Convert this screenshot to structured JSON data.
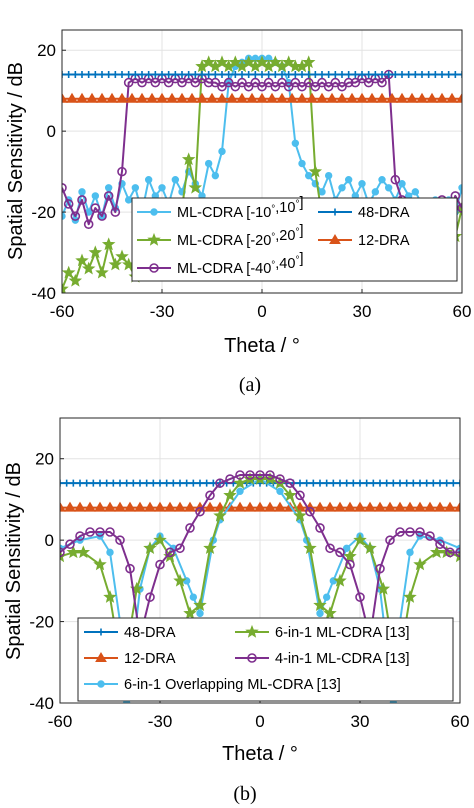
{
  "chart_data": [
    {
      "type": "line",
      "caption": "(a)",
      "xlabel": "Theta / °",
      "ylabel": "Spatial Sensitivity / dB",
      "xlim": [
        -60,
        60
      ],
      "ylim": [
        -40,
        25
      ],
      "xticks": [
        -60,
        -30,
        0,
        30,
        60
      ],
      "yticks": [
        -40,
        -20,
        0,
        20
      ],
      "grid": true,
      "legend": {
        "position": "lower-center",
        "columns": 2
      },
      "series": [
        {
          "name": "ML-CDRA [-10°,10°]",
          "color": "#4DBEEE",
          "marker": "circle-filled",
          "x": [
            -60,
            -58,
            -56,
            -54,
            -52,
            -50,
            -48,
            -46,
            -44,
            -42,
            -40,
            -38,
            -36,
            -34,
            -32,
            -30,
            -28,
            -26,
            -24,
            -22,
            -20,
            -18,
            -16,
            -14,
            -12,
            -10,
            -8,
            -6,
            -4,
            -2,
            0,
            2,
            4,
            6,
            8,
            10,
            12,
            14,
            16,
            18,
            20,
            22,
            24,
            26,
            28,
            30,
            32,
            34,
            36,
            38,
            40,
            42,
            44,
            46,
            48,
            50,
            52,
            54,
            56,
            58,
            60
          ],
          "y": [
            -21,
            -17,
            -22,
            -15,
            -20,
            -16,
            -21,
            -14,
            -19,
            -13,
            -17,
            -14,
            -20,
            -12,
            -16,
            -14,
            -18,
            -12,
            -15,
            -10,
            -13,
            -16,
            -8,
            -11,
            -5,
            12,
            16,
            17,
            18,
            18,
            18,
            18,
            17,
            16,
            12,
            -3,
            -8,
            -11,
            -13,
            -15,
            -11,
            -17,
            -14,
            -12,
            -16,
            -13,
            -18,
            -15,
            -12,
            -14,
            -17,
            -13,
            -16,
            -15,
            -18,
            -19,
            -17,
            -21,
            -17,
            -20,
            -14
          ]
        },
        {
          "name": "ML-CDRA [-20°,20°]",
          "color": "#77AC30",
          "marker": "star",
          "x": [
            -60,
            -58,
            -56,
            -54,
            -52,
            -50,
            -48,
            -46,
            -44,
            -42,
            -40,
            -38,
            -36,
            -34,
            -32,
            -30,
            -28,
            -26,
            -24,
            -22,
            -20,
            -18,
            -16,
            -14,
            -12,
            -10,
            -8,
            -6,
            -4,
            -2,
            0,
            2,
            4,
            6,
            8,
            10,
            12,
            14,
            16,
            18,
            20,
            22,
            24,
            26,
            28,
            30,
            32,
            34,
            36,
            38,
            40,
            42,
            44,
            46,
            48,
            50,
            52,
            54,
            56,
            58,
            60
          ],
          "y": [
            -39,
            -35,
            -37,
            -32,
            -34,
            -30,
            -35,
            -28,
            -33,
            -31,
            -33,
            -36,
            -28,
            -34,
            -26,
            -30,
            -24,
            -27,
            -19,
            -7,
            -14,
            16,
            17,
            16,
            17,
            16,
            17,
            16,
            17,
            16,
            17,
            16,
            17,
            16,
            17,
            16,
            16,
            17,
            -10,
            -21,
            -25,
            -27,
            -22,
            -30,
            -24,
            -28,
            -21,
            -27,
            -31,
            -24,
            -27,
            -22,
            -25,
            -23,
            -21,
            -24,
            -20,
            -23,
            -21,
            -26,
            -19
          ]
        },
        {
          "name": "ML-CDRA [-40°,40°]",
          "color": "#7E2F8E",
          "marker": "circle-open",
          "x": [
            -60,
            -58,
            -56,
            -54,
            -52,
            -50,
            -48,
            -46,
            -44,
            -42,
            -40,
            -38,
            -36,
            -34,
            -32,
            -30,
            -28,
            -26,
            -24,
            -22,
            -20,
            -18,
            -16,
            -14,
            -12,
            -10,
            -8,
            -6,
            -4,
            -2,
            0,
            2,
            4,
            6,
            8,
            10,
            12,
            14,
            16,
            18,
            20,
            22,
            24,
            26,
            28,
            30,
            32,
            34,
            36,
            38,
            40,
            42,
            44,
            46,
            48,
            50,
            52,
            54,
            56,
            58,
            60
          ],
          "y": [
            -14,
            -18,
            -21,
            -17,
            -23,
            -19,
            -21,
            -16,
            -20,
            -10,
            12,
            13,
            12,
            13,
            12,
            13,
            12,
            13,
            12,
            13,
            12,
            13,
            12,
            12,
            11,
            12,
            11,
            12,
            11,
            12,
            11,
            12,
            11,
            12,
            11,
            12,
            11,
            12,
            11,
            12,
            11,
            12,
            11,
            12,
            12,
            13,
            12,
            13,
            12,
            14,
            -12,
            -17,
            -22,
            -19,
            -24,
            -18,
            -22,
            -17,
            -20,
            -16,
            -19
          ]
        },
        {
          "name": "48-DRA",
          "color": "#0072BD",
          "marker": "plus",
          "x": [
            -60,
            -58,
            -56,
            -54,
            -52,
            -50,
            -48,
            -46,
            -44,
            -42,
            -40,
            -38,
            -36,
            -34,
            -32,
            -30,
            -28,
            -26,
            -24,
            -22,
            -20,
            -18,
            -16,
            -14,
            -12,
            -10,
            -8,
            -6,
            -4,
            -2,
            0,
            2,
            4,
            6,
            8,
            10,
            12,
            14,
            16,
            18,
            20,
            22,
            24,
            26,
            28,
            30,
            32,
            34,
            36,
            38,
            40,
            42,
            44,
            46,
            48,
            50,
            52,
            54,
            56,
            58,
            60
          ],
          "y": [
            14,
            14,
            14,
            14,
            14,
            14,
            14,
            14,
            14,
            14,
            14,
            14,
            14,
            14,
            14,
            14,
            14,
            14,
            14,
            14,
            14,
            14,
            14,
            14,
            14,
            14,
            14,
            14,
            14,
            14,
            14,
            14,
            14,
            14,
            14,
            14,
            14,
            14,
            14,
            14,
            14,
            14,
            14,
            14,
            14,
            14,
            14,
            14,
            14,
            14,
            14,
            14,
            14,
            14,
            14,
            14,
            14,
            14,
            14,
            14,
            14
          ]
        },
        {
          "name": "12-DRA",
          "color": "#D95319",
          "marker": "triangle",
          "x": [
            -60,
            -57,
            -54,
            -51,
            -48,
            -45,
            -42,
            -39,
            -36,
            -33,
            -30,
            -27,
            -24,
            -21,
            -18,
            -15,
            -12,
            -9,
            -6,
            -3,
            0,
            3,
            6,
            9,
            12,
            15,
            18,
            21,
            24,
            27,
            30,
            33,
            36,
            39,
            42,
            45,
            48,
            51,
            54,
            57,
            60
          ],
          "y": [
            8,
            8,
            8,
            8,
            8,
            8,
            8,
            8,
            8,
            8,
            8,
            8,
            8,
            8,
            8,
            8,
            8,
            8,
            8,
            8,
            8,
            8,
            8,
            8,
            8,
            8,
            8,
            8,
            8,
            8,
            8,
            8,
            8,
            8,
            8,
            8,
            8,
            8,
            8,
            8,
            8
          ]
        }
      ]
    },
    {
      "type": "line",
      "caption": "(b)",
      "xlabel": "Theta / °",
      "ylabel": "Spatial Sensitivity / dB",
      "xlim": [
        -60,
        60
      ],
      "ylim": [
        -40,
        30
      ],
      "xticks": [
        -60,
        -30,
        0,
        30,
        60
      ],
      "yticks": [
        -40,
        -20,
        0,
        20
      ],
      "grid": true,
      "legend": {
        "position": "lower-center",
        "columns": 2
      },
      "series": [
        {
          "name": "48-DRA",
          "color": "#0072BD",
          "marker": "plus",
          "x": [
            -60,
            -58,
            -56,
            -54,
            -52,
            -50,
            -48,
            -46,
            -44,
            -42,
            -40,
            -38,
            -36,
            -34,
            -32,
            -30,
            -28,
            -26,
            -24,
            -22,
            -20,
            -18,
            -16,
            -14,
            -12,
            -10,
            -8,
            -6,
            -4,
            -2,
            0,
            2,
            4,
            6,
            8,
            10,
            12,
            14,
            16,
            18,
            20,
            22,
            24,
            26,
            28,
            30,
            32,
            34,
            36,
            38,
            40,
            42,
            44,
            46,
            48,
            50,
            52,
            54,
            56,
            58,
            60
          ],
          "y": [
            14,
            14,
            14,
            14,
            14,
            14,
            14,
            14,
            14,
            14,
            14,
            14,
            14,
            14,
            14,
            14,
            14,
            14,
            14,
            14,
            14,
            14,
            14,
            14,
            14,
            14,
            14,
            14,
            14,
            14,
            14,
            14,
            14,
            14,
            14,
            14,
            14,
            14,
            14,
            14,
            14,
            14,
            14,
            14,
            14,
            14,
            14,
            14,
            14,
            14,
            14,
            14,
            14,
            14,
            14,
            14,
            14,
            14,
            14,
            14,
            14
          ]
        },
        {
          "name": "12-DRA",
          "color": "#D95319",
          "marker": "triangle",
          "x": [
            -60,
            -57,
            -54,
            -51,
            -48,
            -45,
            -42,
            -39,
            -36,
            -33,
            -30,
            -27,
            -24,
            -21,
            -18,
            -15,
            -12,
            -9,
            -6,
            -3,
            0,
            3,
            6,
            9,
            12,
            15,
            18,
            21,
            24,
            27,
            30,
            33,
            36,
            39,
            42,
            45,
            48,
            51,
            54,
            57,
            60
          ],
          "y": [
            8,
            8,
            8,
            8,
            8,
            8,
            8,
            8,
            8,
            8,
            8,
            8,
            8,
            8,
            8,
            8,
            8,
            8,
            8,
            8,
            8,
            8,
            8,
            8,
            8,
            8,
            8,
            8,
            8,
            8,
            8,
            8,
            8,
            8,
            8,
            8,
            8,
            8,
            8,
            8,
            8
          ]
        },
        {
          "name": "6-in-1 Overlapping ML-CDRA [13]",
          "color": "#4DBEEE",
          "marker": "circle-filled",
          "x": [
            -60,
            -54,
            -48,
            -45,
            -42,
            -40,
            -36,
            -33,
            -30,
            -26,
            -22,
            -20,
            -18,
            -14,
            -12,
            -6,
            0,
            6,
            12,
            14,
            18,
            20,
            22,
            26,
            30,
            33,
            36,
            40,
            42,
            45,
            48,
            54,
            60
          ],
          "y": [
            -2,
            0,
            1,
            -3,
            -20,
            -40,
            -12,
            -2,
            1,
            -2,
            -10,
            -14,
            -18,
            0,
            5,
            12,
            15,
            12,
            5,
            0,
            -18,
            -14,
            -10,
            -2,
            1,
            -2,
            -12,
            -40,
            -20,
            -3,
            1,
            0,
            -2
          ]
        },
        {
          "name": "6-in-1 ML-CDRA [13]",
          "color": "#77AC30",
          "marker": "star",
          "x": [
            -60,
            -56,
            -53,
            -48,
            -45,
            -42,
            -40,
            -37,
            -33,
            -30,
            -27,
            -24,
            -21,
            -18,
            -15,
            -12,
            -9,
            -6,
            -3,
            0,
            3,
            6,
            9,
            12,
            15,
            18,
            21,
            24,
            27,
            30,
            33,
            37,
            40,
            42,
            45,
            48,
            53,
            56,
            60
          ],
          "y": [
            -4,
            -3,
            -3,
            -6,
            -14,
            -29,
            -27,
            -12,
            -2,
            0,
            -4,
            -10,
            -18,
            -16,
            -2,
            6,
            11,
            14,
            15,
            15,
            15,
            14,
            11,
            6,
            -2,
            -16,
            -18,
            -10,
            -4,
            0,
            -2,
            -12,
            -27,
            -29,
            -14,
            -6,
            -3,
            -3,
            -4
          ]
        },
        {
          "name": "4-in-1 ML-CDRA [13]",
          "color": "#7E2F8E",
          "marker": "circle-open",
          "x": [
            -60,
            -57,
            -54,
            -51,
            -48,
            -45,
            -42,
            -39,
            -36,
            -33,
            -30,
            -27,
            -24,
            -21,
            -18,
            -15,
            -12,
            -9,
            -6,
            -3,
            0,
            3,
            6,
            9,
            12,
            15,
            18,
            21,
            24,
            27,
            30,
            33,
            36,
            39,
            42,
            45,
            48,
            51,
            54,
            57,
            60
          ],
          "y": [
            -3,
            -1,
            1,
            2,
            2,
            2,
            0,
            -7,
            -24,
            -14,
            -6,
            -3,
            -2,
            3,
            7,
            11,
            14,
            15,
            16,
            16,
            16,
            16,
            15,
            14,
            11,
            7,
            3,
            -2,
            -3,
            -6,
            -14,
            -24,
            -7,
            0,
            2,
            2,
            2,
            1,
            -1,
            -3,
            -3
          ]
        }
      ]
    }
  ]
}
